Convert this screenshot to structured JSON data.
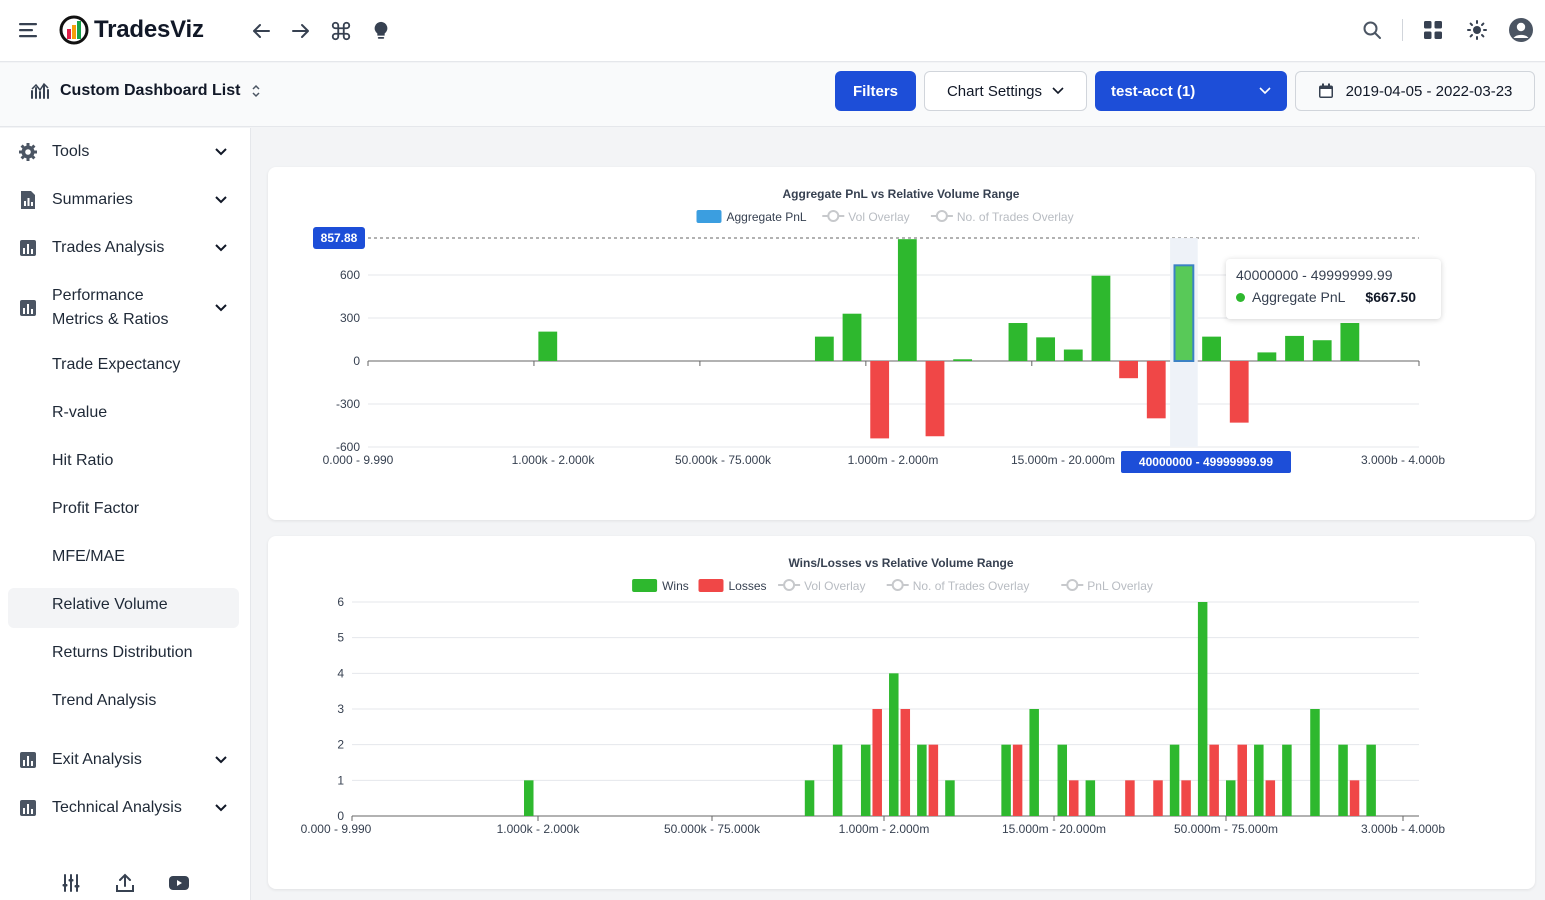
{
  "app": {
    "name": "TradesViz",
    "dashboard_title": "Custom Dashboard List"
  },
  "header": {
    "filters_label": "Filters",
    "chart_settings_label": "Chart Settings",
    "account_label": "test-acct (1)",
    "date_range": "2019-04-05 - 2022-03-23"
  },
  "sidebar": {
    "items": [
      {
        "label": "Tools",
        "icon": "gear-icon"
      },
      {
        "label": "Summaries",
        "icon": "report-icon"
      },
      {
        "label": "Trades Analysis",
        "icon": "bar-chart-icon"
      },
      {
        "label": "Performance",
        "label2": "Metrics & Ratios",
        "icon": "bar-chart-icon"
      },
      {
        "label": "Exit Analysis",
        "icon": "bar-chart-icon"
      },
      {
        "label": "Technical Analysis",
        "icon": "bar-chart-icon"
      }
    ],
    "sub_items": [
      "Trade Expectancy",
      "R-value",
      "Hit Ratio",
      "Profit Factor",
      "MFE/MAE",
      "Relative Volume",
      "Returns Distribution",
      "Trend Analysis"
    ],
    "active_sub_item": "Relative Volume"
  },
  "colors": {
    "accent": "#1d4ed8",
    "win": "#2eb82e",
    "loss": "#f04747",
    "pnl_legend": "#3b9ee0"
  },
  "chart_data": [
    {
      "type": "bar",
      "title": "Aggregate PnL vs Relative Volume Range",
      "legend": [
        {
          "name": "Aggregate PnL",
          "active": true
        },
        {
          "name": "Vol Overlay",
          "active": false
        },
        {
          "name": "No. of Trades Overlay",
          "active": false
        }
      ],
      "ylim": [
        -600,
        857.88
      ],
      "yticks": [
        -600,
        -300,
        0,
        300,
        600
      ],
      "max_marker": "857.88",
      "x_tick_labels": [
        "0.000 - 9.990",
        "1.000k - 2.000k",
        "50.000k - 75.000k",
        "1.000m - 2.000m",
        "15.000m - 20.000m",
        "3.000b - 4.000b"
      ],
      "hover_axis_label": "40000000 - 49999999.99",
      "series": [
        {
          "name": "Aggregate PnL",
          "values": [
            0,
            0,
            0,
            0,
            0,
            0,
            205,
            0,
            0,
            0,
            0,
            0,
            0,
            0,
            0,
            0,
            170,
            330,
            -540,
            850,
            -525,
            12,
            0,
            265,
            165,
            80,
            595,
            -120,
            -400,
            667.5,
            170,
            -430,
            60,
            175,
            145,
            265,
            0,
            0
          ]
        }
      ],
      "tooltip": {
        "range": "40000000 - 49999999.99",
        "label": "Aggregate PnL",
        "value": "$667.50"
      }
    },
    {
      "type": "bar",
      "title": "Wins/Losses vs Relative Volume Range",
      "legend": [
        {
          "name": "Wins",
          "active": true
        },
        {
          "name": "Losses",
          "active": true
        },
        {
          "name": "Vol Overlay",
          "active": false
        },
        {
          "name": "No. of Trades Overlay",
          "active": false
        },
        {
          "name": "PnL Overlay",
          "active": false
        }
      ],
      "ylim": [
        0,
        6
      ],
      "yticks": [
        0,
        1,
        2,
        3,
        4,
        5,
        6
      ],
      "x_tick_labels": [
        "0.000 - 9.990",
        "1.000k - 2.000k",
        "50.000k - 75.000k",
        "1.000m - 2.000m",
        "15.000m - 20.000m",
        "50.000m - 75.000m",
        "3.000b - 4.000b"
      ],
      "series": [
        {
          "name": "Wins",
          "values": [
            0,
            0,
            0,
            0,
            0,
            0,
            1,
            0,
            0,
            0,
            0,
            0,
            0,
            0,
            0,
            0,
            1,
            2,
            2,
            4,
            2,
            1,
            0,
            2,
            3,
            2,
            1,
            0,
            0,
            2,
            6,
            1,
            2,
            2,
            3,
            2,
            2,
            0
          ]
        },
        {
          "name": "Losses",
          "values": [
            0,
            0,
            0,
            0,
            0,
            0,
            0,
            0,
            0,
            0,
            0,
            0,
            0,
            0,
            0,
            0,
            0,
            0,
            3,
            3,
            2,
            0,
            0,
            2,
            0,
            1,
            0,
            1,
            1,
            1,
            2,
            2,
            1,
            0,
            0,
            1,
            0,
            0
          ]
        }
      ]
    }
  ]
}
